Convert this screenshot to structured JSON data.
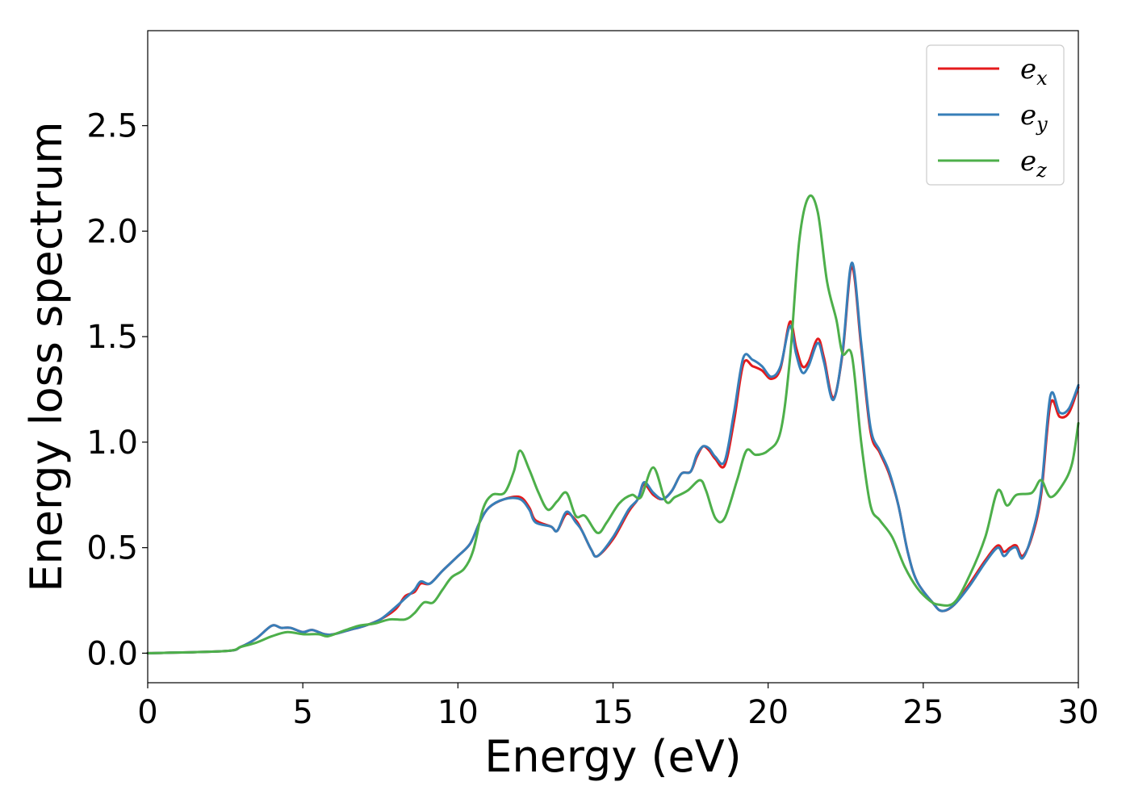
{
  "chart_data": {
    "type": "line",
    "xlabel": "Energy (eV)",
    "ylabel": "Energy loss spectrum",
    "xlim": [
      0,
      30
    ],
    "ylim": [
      -0.14,
      2.95
    ],
    "x_ticks": [
      0,
      5,
      10,
      15,
      20,
      25,
      30
    ],
    "y_ticks": [
      0.0,
      0.5,
      1.0,
      1.5,
      2.0,
      2.5
    ],
    "x_tick_labels": [
      "0",
      "5",
      "10",
      "15",
      "20",
      "25",
      "30"
    ],
    "y_tick_labels": [
      "0.0",
      "0.5",
      "1.0",
      "1.5",
      "2.0",
      "2.5"
    ],
    "grid": false,
    "legend_position": "top-right",
    "series": [
      {
        "name": "e_x",
        "label_base": "e",
        "label_sub": "x",
        "color": "#e41a1c",
        "points": [
          [
            0,
            0.0
          ],
          [
            2.5,
            0.01
          ],
          [
            3.0,
            0.03
          ],
          [
            3.5,
            0.07
          ],
          [
            4.0,
            0.13
          ],
          [
            4.3,
            0.12
          ],
          [
            4.6,
            0.12
          ],
          [
            5.0,
            0.1
          ],
          [
            5.3,
            0.11
          ],
          [
            5.7,
            0.09
          ],
          [
            6.0,
            0.09
          ],
          [
            6.5,
            0.11
          ],
          [
            7.0,
            0.13
          ],
          [
            7.5,
            0.16
          ],
          [
            8.0,
            0.21
          ],
          [
            8.3,
            0.27
          ],
          [
            8.6,
            0.29
          ],
          [
            8.8,
            0.33
          ],
          [
            9.1,
            0.33
          ],
          [
            9.5,
            0.39
          ],
          [
            10.0,
            0.46
          ],
          [
            10.4,
            0.52
          ],
          [
            10.7,
            0.62
          ],
          [
            11.0,
            0.69
          ],
          [
            11.5,
            0.73
          ],
          [
            12.0,
            0.74
          ],
          [
            12.3,
            0.69
          ],
          [
            12.5,
            0.63
          ],
          [
            13.0,
            0.6
          ],
          [
            13.2,
            0.58
          ],
          [
            13.5,
            0.66
          ],
          [
            13.8,
            0.63
          ],
          [
            14.0,
            0.58
          ],
          [
            14.3,
            0.49
          ],
          [
            14.5,
            0.46
          ],
          [
            15.0,
            0.54
          ],
          [
            15.5,
            0.67
          ],
          [
            15.8,
            0.73
          ],
          [
            16.0,
            0.8
          ],
          [
            16.3,
            0.75
          ],
          [
            16.6,
            0.73
          ],
          [
            16.9,
            0.77
          ],
          [
            17.2,
            0.85
          ],
          [
            17.5,
            0.86
          ],
          [
            17.7,
            0.93
          ],
          [
            17.9,
            0.98
          ],
          [
            18.1,
            0.96
          ],
          [
            18.3,
            0.92
          ],
          [
            18.6,
            0.89
          ],
          [
            18.9,
            1.1
          ],
          [
            19.2,
            1.37
          ],
          [
            19.5,
            1.36
          ],
          [
            19.8,
            1.34
          ],
          [
            20.1,
            1.3
          ],
          [
            20.4,
            1.35
          ],
          [
            20.7,
            1.57
          ],
          [
            20.9,
            1.45
          ],
          [
            21.1,
            1.36
          ],
          [
            21.3,
            1.38
          ],
          [
            21.6,
            1.49
          ],
          [
            21.8,
            1.4
          ],
          [
            22.1,
            1.21
          ],
          [
            22.4,
            1.42
          ],
          [
            22.7,
            1.83
          ],
          [
            23.0,
            1.45
          ],
          [
            23.3,
            1.05
          ],
          [
            23.6,
            0.95
          ],
          [
            23.9,
            0.85
          ],
          [
            24.2,
            0.7
          ],
          [
            24.5,
            0.48
          ],
          [
            24.8,
            0.34
          ],
          [
            25.3,
            0.24
          ],
          [
            25.6,
            0.2
          ],
          [
            26.0,
            0.23
          ],
          [
            26.5,
            0.33
          ],
          [
            27.0,
            0.44
          ],
          [
            27.4,
            0.51
          ],
          [
            27.6,
            0.48
          ],
          [
            27.8,
            0.5
          ],
          [
            28.0,
            0.51
          ],
          [
            28.2,
            0.46
          ],
          [
            28.5,
            0.55
          ],
          [
            28.8,
            0.75
          ],
          [
            29.1,
            1.18
          ],
          [
            29.4,
            1.12
          ],
          [
            29.7,
            1.14
          ],
          [
            30.0,
            1.26
          ]
        ]
      },
      {
        "name": "e_y",
        "label_base": "e",
        "label_sub": "y",
        "color": "#377eb8",
        "points": [
          [
            0,
            0.0
          ],
          [
            2.5,
            0.01
          ],
          [
            3.0,
            0.03
          ],
          [
            3.5,
            0.07
          ],
          [
            4.0,
            0.13
          ],
          [
            4.3,
            0.12
          ],
          [
            4.6,
            0.12
          ],
          [
            5.0,
            0.1
          ],
          [
            5.3,
            0.11
          ],
          [
            5.7,
            0.09
          ],
          [
            6.0,
            0.09
          ],
          [
            6.5,
            0.11
          ],
          [
            7.0,
            0.13
          ],
          [
            7.5,
            0.16
          ],
          [
            8.0,
            0.22
          ],
          [
            8.3,
            0.26
          ],
          [
            8.6,
            0.3
          ],
          [
            8.8,
            0.34
          ],
          [
            9.1,
            0.33
          ],
          [
            9.5,
            0.39
          ],
          [
            10.0,
            0.46
          ],
          [
            10.4,
            0.52
          ],
          [
            10.7,
            0.62
          ],
          [
            11.0,
            0.69
          ],
          [
            11.5,
            0.73
          ],
          [
            12.0,
            0.73
          ],
          [
            12.3,
            0.68
          ],
          [
            12.5,
            0.62
          ],
          [
            13.0,
            0.6
          ],
          [
            13.2,
            0.58
          ],
          [
            13.5,
            0.67
          ],
          [
            13.8,
            0.62
          ],
          [
            14.0,
            0.58
          ],
          [
            14.3,
            0.49
          ],
          [
            14.5,
            0.46
          ],
          [
            15.0,
            0.55
          ],
          [
            15.5,
            0.68
          ],
          [
            15.8,
            0.73
          ],
          [
            16.0,
            0.81
          ],
          [
            16.3,
            0.76
          ],
          [
            16.6,
            0.73
          ],
          [
            16.9,
            0.77
          ],
          [
            17.2,
            0.85
          ],
          [
            17.5,
            0.86
          ],
          [
            17.7,
            0.94
          ],
          [
            17.9,
            0.98
          ],
          [
            18.1,
            0.97
          ],
          [
            18.3,
            0.93
          ],
          [
            18.6,
            0.91
          ],
          [
            18.9,
            1.14
          ],
          [
            19.2,
            1.4
          ],
          [
            19.5,
            1.39
          ],
          [
            19.8,
            1.36
          ],
          [
            20.1,
            1.31
          ],
          [
            20.4,
            1.36
          ],
          [
            20.7,
            1.55
          ],
          [
            20.9,
            1.42
          ],
          [
            21.1,
            1.33
          ],
          [
            21.3,
            1.36
          ],
          [
            21.6,
            1.47
          ],
          [
            21.8,
            1.38
          ],
          [
            22.1,
            1.2
          ],
          [
            22.4,
            1.43
          ],
          [
            22.7,
            1.85
          ],
          [
            23.0,
            1.47
          ],
          [
            23.3,
            1.07
          ],
          [
            23.6,
            0.96
          ],
          [
            23.9,
            0.86
          ],
          [
            24.2,
            0.7
          ],
          [
            24.5,
            0.48
          ],
          [
            24.8,
            0.34
          ],
          [
            25.3,
            0.24
          ],
          [
            25.6,
            0.2
          ],
          [
            26.0,
            0.23
          ],
          [
            26.5,
            0.32
          ],
          [
            27.0,
            0.43
          ],
          [
            27.4,
            0.5
          ],
          [
            27.6,
            0.46
          ],
          [
            27.8,
            0.49
          ],
          [
            28.0,
            0.5
          ],
          [
            28.2,
            0.45
          ],
          [
            28.5,
            0.56
          ],
          [
            28.8,
            0.77
          ],
          [
            29.1,
            1.22
          ],
          [
            29.4,
            1.14
          ],
          [
            29.7,
            1.16
          ],
          [
            30.0,
            1.27
          ]
        ]
      },
      {
        "name": "e_z",
        "label_base": "e",
        "label_sub": "z",
        "color": "#4daf4a",
        "points": [
          [
            0,
            0.0
          ],
          [
            2.5,
            0.01
          ],
          [
            3.0,
            0.03
          ],
          [
            3.5,
            0.05
          ],
          [
            4.0,
            0.08
          ],
          [
            4.5,
            0.1
          ],
          [
            5.0,
            0.09
          ],
          [
            5.5,
            0.09
          ],
          [
            5.8,
            0.08
          ],
          [
            6.2,
            0.1
          ],
          [
            6.8,
            0.13
          ],
          [
            7.3,
            0.14
          ],
          [
            7.8,
            0.16
          ],
          [
            8.3,
            0.16
          ],
          [
            8.6,
            0.19
          ],
          [
            8.9,
            0.24
          ],
          [
            9.2,
            0.24
          ],
          [
            9.5,
            0.3
          ],
          [
            9.8,
            0.36
          ],
          [
            10.2,
            0.4
          ],
          [
            10.5,
            0.49
          ],
          [
            10.8,
            0.68
          ],
          [
            11.1,
            0.75
          ],
          [
            11.5,
            0.76
          ],
          [
            11.8,
            0.86
          ],
          [
            12.0,
            0.96
          ],
          [
            12.3,
            0.87
          ],
          [
            12.6,
            0.76
          ],
          [
            12.9,
            0.68
          ],
          [
            13.2,
            0.72
          ],
          [
            13.5,
            0.76
          ],
          [
            13.8,
            0.65
          ],
          [
            14.1,
            0.65
          ],
          [
            14.5,
            0.57
          ],
          [
            14.8,
            0.62
          ],
          [
            15.2,
            0.71
          ],
          [
            15.6,
            0.75
          ],
          [
            15.9,
            0.74
          ],
          [
            16.3,
            0.88
          ],
          [
            16.7,
            0.72
          ],
          [
            17.0,
            0.74
          ],
          [
            17.4,
            0.77
          ],
          [
            17.8,
            0.82
          ],
          [
            18.0,
            0.77
          ],
          [
            18.3,
            0.64
          ],
          [
            18.6,
            0.64
          ],
          [
            19.0,
            0.82
          ],
          [
            19.3,
            0.96
          ],
          [
            19.6,
            0.94
          ],
          [
            20.0,
            0.96
          ],
          [
            20.4,
            1.05
          ],
          [
            20.7,
            1.39
          ],
          [
            21.0,
            1.95
          ],
          [
            21.3,
            2.16
          ],
          [
            21.6,
            2.09
          ],
          [
            21.9,
            1.76
          ],
          [
            22.2,
            1.58
          ],
          [
            22.4,
            1.42
          ],
          [
            22.7,
            1.41
          ],
          [
            23.0,
            1.0
          ],
          [
            23.3,
            0.7
          ],
          [
            23.6,
            0.63
          ],
          [
            24.0,
            0.55
          ],
          [
            24.4,
            0.41
          ],
          [
            24.8,
            0.31
          ],
          [
            25.2,
            0.25
          ],
          [
            25.5,
            0.23
          ],
          [
            26.0,
            0.24
          ],
          [
            26.5,
            0.37
          ],
          [
            27.0,
            0.55
          ],
          [
            27.4,
            0.77
          ],
          [
            27.7,
            0.7
          ],
          [
            28.0,
            0.75
          ],
          [
            28.5,
            0.76
          ],
          [
            28.8,
            0.82
          ],
          [
            29.1,
            0.74
          ],
          [
            29.5,
            0.8
          ],
          [
            29.8,
            0.9
          ],
          [
            30.0,
            1.09
          ]
        ]
      }
    ]
  }
}
